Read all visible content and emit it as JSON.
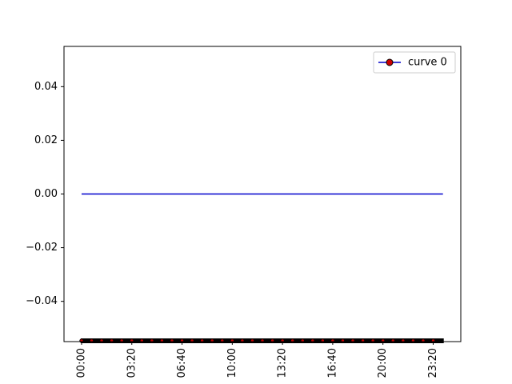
{
  "chart_data": {
    "type": "line",
    "title": "",
    "xlabel": "",
    "ylabel": "",
    "x_axis": {
      "ticks": [
        "00:00",
        "03:20",
        "06:40",
        "10:00",
        "13:20",
        "16:40",
        "20:00",
        "23:20"
      ],
      "tick_minutes": [
        0,
        200,
        400,
        600,
        800,
        1000,
        1200,
        1400
      ],
      "range_minutes": [
        -70,
        1510
      ],
      "tick_label_rotation": "vertical"
    },
    "y_axis": {
      "ticks": [
        "−0.04",
        "−0.02",
        "0.00",
        "0.02",
        "0.04"
      ],
      "tick_values": [
        -0.04,
        -0.02,
        0.0,
        0.02,
        0.04
      ],
      "ylim": [
        -0.055,
        0.055
      ]
    },
    "series": [
      {
        "name": "curve 0",
        "x_start_minutes": 0,
        "x_end_minutes": 1439,
        "x_step_minutes": 1,
        "y_value": 0.0,
        "line_color": "#0000cc",
        "marker_face": "#cc0000",
        "marker_edge": "#000000",
        "marker": "o",
        "markevery_note": "markers drawn at every minute"
      }
    ],
    "legend": {
      "position": "top-right",
      "entries": [
        "curve 0"
      ]
    },
    "grid": false
  }
}
